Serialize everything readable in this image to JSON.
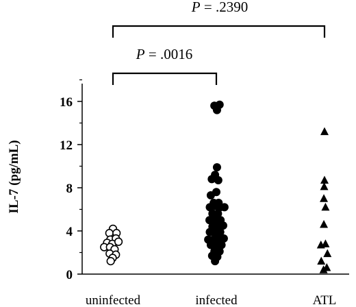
{
  "chart_data": {
    "type": "scatter",
    "title": "",
    "xlabel": "",
    "ylabel": "IL-7 (pg/mL)",
    "ylim": [
      0,
      18
    ],
    "yticks": [
      0,
      4,
      8,
      12,
      16
    ],
    "categories": [
      "uninfected",
      "infected",
      "ATL"
    ],
    "grid": false,
    "legend": "none",
    "series": [
      {
        "category": "uninfected",
        "marker": "open-circle",
        "points": [
          {
            "dx": 0.0,
            "y": 4.2
          },
          {
            "dx": -0.55,
            "y": 3.8
          },
          {
            "dx": 0.55,
            "y": 3.8
          },
          {
            "dx": -0.4,
            "y": 3.2
          },
          {
            "dx": 0.45,
            "y": 3.3
          },
          {
            "dx": -0.9,
            "y": 2.9
          },
          {
            "dx": -0.1,
            "y": 2.8
          },
          {
            "dx": 0.85,
            "y": 3.0
          },
          {
            "dx": -1.35,
            "y": 2.5
          },
          {
            "dx": -0.45,
            "y": 2.5
          },
          {
            "dx": 0.25,
            "y": 2.3
          },
          {
            "dx": -0.5,
            "y": 1.9
          },
          {
            "dx": 0.45,
            "y": 1.8
          },
          {
            "dx": -0.05,
            "y": 1.5
          },
          {
            "dx": -0.35,
            "y": 1.2
          }
        ]
      },
      {
        "category": "infected",
        "marker": "filled-circle",
        "points": [
          {
            "dx": -0.3,
            "y": 15.6
          },
          {
            "dx": 0.5,
            "y": 15.7
          },
          {
            "dx": 0.1,
            "y": 15.2
          },
          {
            "dx": 0.1,
            "y": 9.9
          },
          {
            "dx": -0.2,
            "y": 9.2
          },
          {
            "dx": -0.7,
            "y": 8.8
          },
          {
            "dx": 0.3,
            "y": 8.7
          },
          {
            "dx": 0.0,
            "y": 7.6
          },
          {
            "dx": -0.85,
            "y": 7.3
          },
          {
            "dx": -0.4,
            "y": 6.6
          },
          {
            "dx": 0.35,
            "y": 6.6
          },
          {
            "dx": -1.0,
            "y": 6.2
          },
          {
            "dx": -0.15,
            "y": 6.3
          },
          {
            "dx": 0.6,
            "y": 6.2
          },
          {
            "dx": 1.25,
            "y": 6.2
          },
          {
            "dx": -0.6,
            "y": 5.6
          },
          {
            "dx": 0.25,
            "y": 5.6
          },
          {
            "dx": -1.05,
            "y": 5.0
          },
          {
            "dx": -0.2,
            "y": 5.0
          },
          {
            "dx": 0.65,
            "y": 5.0
          },
          {
            "dx": -0.6,
            "y": 4.4
          },
          {
            "dx": 0.2,
            "y": 4.4
          },
          {
            "dx": 1.05,
            "y": 4.5
          },
          {
            "dx": -1.0,
            "y": 3.9
          },
          {
            "dx": -0.2,
            "y": 3.8
          },
          {
            "dx": 0.6,
            "y": 3.9
          },
          {
            "dx": -1.25,
            "y": 3.2
          },
          {
            "dx": -0.45,
            "y": 3.2
          },
          {
            "dx": 0.35,
            "y": 3.2
          },
          {
            "dx": 1.15,
            "y": 3.3
          },
          {
            "dx": -0.85,
            "y": 2.7
          },
          {
            "dx": -0.05,
            "y": 2.6
          },
          {
            "dx": 0.8,
            "y": 2.7
          },
          {
            "dx": -0.3,
            "y": 2.1
          },
          {
            "dx": 0.5,
            "y": 2.1
          },
          {
            "dx": -0.65,
            "y": 1.7
          },
          {
            "dx": 0.15,
            "y": 1.6
          },
          {
            "dx": -0.2,
            "y": 1.2
          }
        ]
      },
      {
        "category": "ATL",
        "marker": "filled-triangle",
        "points": [
          {
            "dx": 0.0,
            "y": 13.2
          },
          {
            "dx": 0.0,
            "y": 8.7
          },
          {
            "dx": -0.05,
            "y": 8.1
          },
          {
            "dx": -0.1,
            "y": 7.0
          },
          {
            "dx": 0.15,
            "y": 6.2
          },
          {
            "dx": -0.1,
            "y": 4.6
          },
          {
            "dx": -0.55,
            "y": 2.7
          },
          {
            "dx": 0.15,
            "y": 2.8
          },
          {
            "dx": 0.45,
            "y": 1.9
          },
          {
            "dx": -0.5,
            "y": 1.2
          },
          {
            "dx": 0.35,
            "y": 0.6
          },
          {
            "dx": -0.15,
            "y": 0.4
          }
        ]
      }
    ],
    "annotations": [
      {
        "text": "P = .0016",
        "from": "uninfected",
        "to": "infected"
      },
      {
        "text": "P = .2390",
        "from": "uninfected",
        "to": "ATL"
      }
    ]
  }
}
